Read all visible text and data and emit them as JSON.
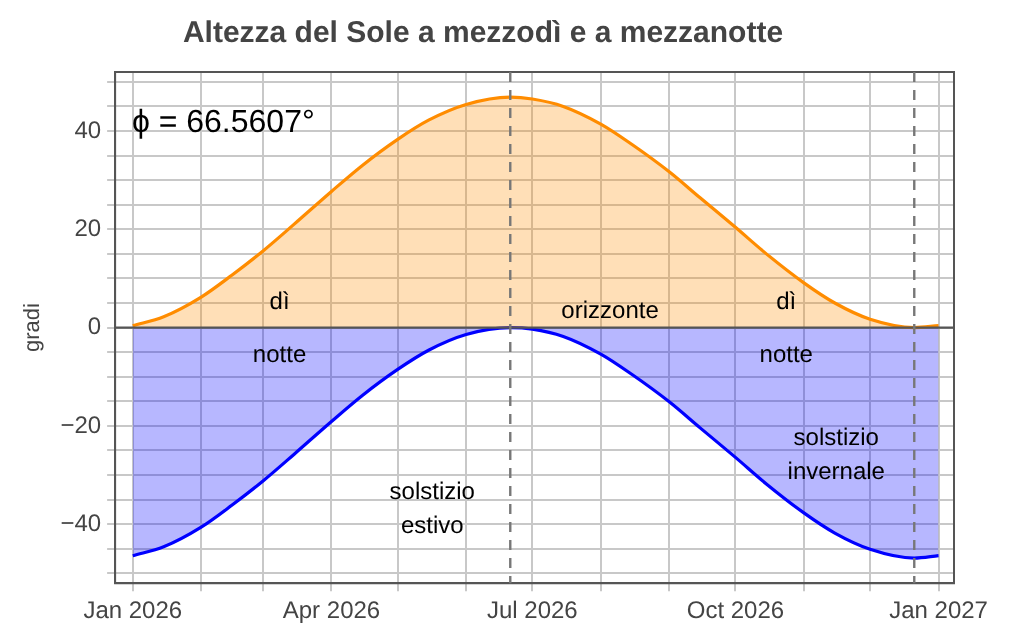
{
  "chart_data": {
    "type": "area",
    "title": "Altezza del Sole a mezzodì e a mezzanotte",
    "ylabel": "gradi",
    "x": [
      "2026-01-01",
      "2026-01-15",
      "2026-02-01",
      "2026-02-15",
      "2026-03-01",
      "2026-03-15",
      "2026-04-01",
      "2026-04-15",
      "2026-05-01",
      "2026-05-15",
      "2026-06-01",
      "2026-06-21",
      "2026-07-01",
      "2026-07-15",
      "2026-08-01",
      "2026-08-15",
      "2026-09-01",
      "2026-09-15",
      "2026-10-01",
      "2026-10-15",
      "2026-11-01",
      "2026-11-15",
      "2026-12-01",
      "2026-12-21",
      "2027-01-01"
    ],
    "series": [
      {
        "color": "#ff8c00",
        "values": [
          0.4,
          2.2,
          6.2,
          10.7,
          15.6,
          21.0,
          27.7,
          33.0,
          38.3,
          42.2,
          45.4,
          46.9,
          46.5,
          45.0,
          41.4,
          37.3,
          31.7,
          26.4,
          20.4,
          15.0,
          9.1,
          5.0,
          1.7,
          0.0,
          0.4
        ]
      },
      {
        "color": "#0000ff",
        "values": [
          -46.4,
          -44.6,
          -40.6,
          -36.1,
          -31.2,
          -25.8,
          -19.1,
          -13.8,
          -8.5,
          -4.6,
          -1.4,
          0.0,
          -0.3,
          -1.8,
          -5.4,
          -9.5,
          -15.1,
          -20.4,
          -26.4,
          -31.8,
          -37.7,
          -41.8,
          -45.1,
          -46.9,
          -46.4
        ]
      }
    ],
    "xlim": [
      "2025-12-24",
      "2027-01-08"
    ],
    "xticks": [
      {
        "value": "2026-01-01",
        "label": "Jan 2026"
      },
      {
        "value": "2026-02-01",
        "label": null
      },
      {
        "value": "2026-03-01",
        "label": null
      },
      {
        "value": "2026-04-01",
        "label": "Apr 2026"
      },
      {
        "value": "2026-05-01",
        "label": null
      },
      {
        "value": "2026-06-01",
        "label": null
      },
      {
        "value": "2026-07-01",
        "label": "Jul 2026"
      },
      {
        "value": "2026-08-01",
        "label": null
      },
      {
        "value": "2026-09-01",
        "label": null
      },
      {
        "value": "2026-10-01",
        "label": "Oct 2026"
      },
      {
        "value": "2026-11-01",
        "label": null
      },
      {
        "value": "2026-12-01",
        "label": null
      },
      {
        "value": "2027-01-01",
        "label": "Jan 2027"
      }
    ],
    "ylim": [
      -52,
      52
    ],
    "yticks": [
      {
        "value": -50,
        "label": null
      },
      {
        "value": -45,
        "label": null
      },
      -40,
      {
        "value": -35,
        "label": null
      },
      {
        "value": -30,
        "label": null
      },
      {
        "value": -25,
        "label": null
      },
      -20,
      {
        "value": -15,
        "label": null
      },
      {
        "value": -10,
        "label": null
      },
      {
        "value": -5,
        "label": null
      },
      0,
      {
        "value": 5,
        "label": null
      },
      {
        "value": 10,
        "label": null
      },
      {
        "value": 15,
        "label": null
      },
      20,
      {
        "value": 25,
        "label": null
      },
      {
        "value": 30,
        "label": null
      },
      {
        "value": 35,
        "label": null
      },
      40,
      {
        "value": 45,
        "label": null
      },
      {
        "value": 50,
        "label": null
      }
    ],
    "grid": true,
    "marker": "none",
    "line_style": "solid",
    "legend": false,
    "ref_lines": [
      {
        "axis": "y",
        "value": 0,
        "label": "orizzonte",
        "color": "#555555",
        "line_style": "solid"
      },
      {
        "axis": "x",
        "value": "2026-06-21",
        "label": "solstizio estivo",
        "color": "#777777",
        "line_style": "dashed"
      },
      {
        "axis": "x",
        "value": "2026-12-21",
        "label": "solstizio invernale",
        "color": "#777777",
        "line_style": "dashed"
      }
    ],
    "annotations": [
      "ϕ = 66.5607°",
      "dì",
      "notte",
      "dì",
      "notte"
    ]
  }
}
